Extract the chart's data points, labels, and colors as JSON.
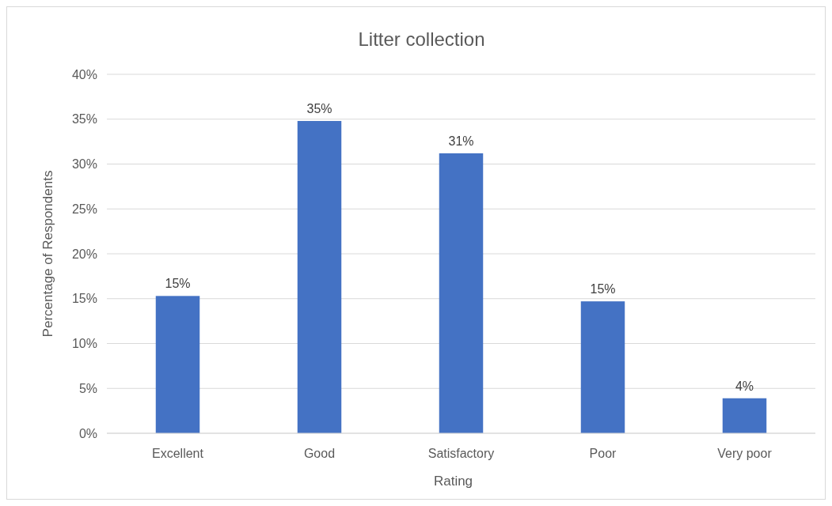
{
  "chart_data": {
    "type": "bar",
    "title": "Litter collection",
    "xlabel": "Rating",
    "ylabel": "Percentage of Respondents",
    "categories": [
      "Excellent",
      "Good",
      "Satisfactory",
      "Poor",
      "Very poor"
    ],
    "values": [
      15.3,
      34.8,
      31.2,
      14.7,
      3.9
    ],
    "value_labels": [
      "15%",
      "35%",
      "31%",
      "15%",
      "4%"
    ],
    "color": "#4472c4",
    "ylim": [
      0,
      40
    ],
    "yticks": [
      {
        "value": 0,
        "label": "0%"
      },
      {
        "value": 5,
        "label": "5%"
      },
      {
        "value": 10,
        "label": "10%"
      },
      {
        "value": 15,
        "label": "15%"
      },
      {
        "value": 20,
        "label": "20%"
      },
      {
        "value": 25,
        "label": "25%"
      },
      {
        "value": 30,
        "label": "30%"
      },
      {
        "value": 35,
        "label": "35%"
      },
      {
        "value": 40,
        "label": "40%"
      }
    ],
    "grid": "y"
  }
}
